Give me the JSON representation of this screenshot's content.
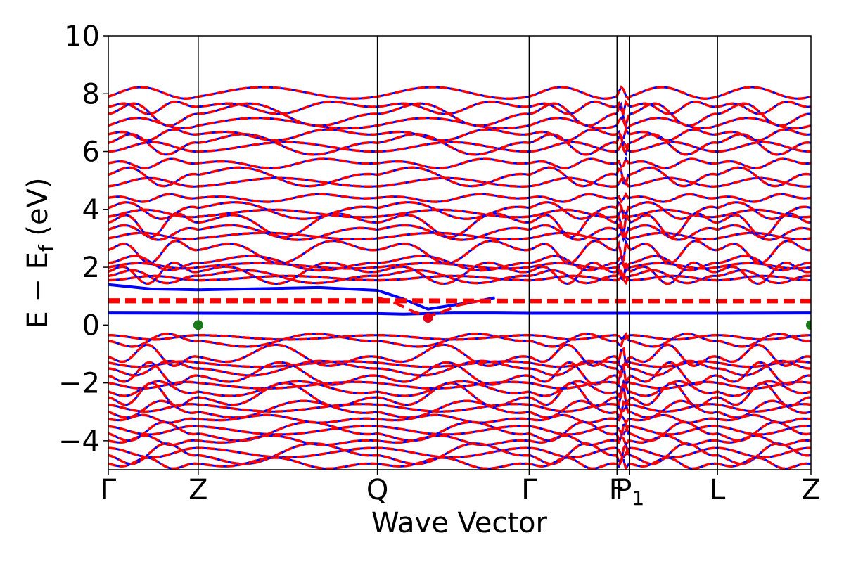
{
  "chart_data": {
    "type": "line",
    "title": "",
    "xlabel": "Wave Vector",
    "ylabel_main": "E − E",
    "ylabel_sub": "f",
    "ylabel_unit": " (eV)",
    "ylim": [
      -5,
      10
    ],
    "xlim": [
      0,
      1
    ],
    "yticks": [
      {
        "value": 10,
        "label": "10"
      },
      {
        "value": 8,
        "label": "8"
      },
      {
        "value": 6,
        "label": "6"
      },
      {
        "value": 4,
        "label": "4"
      },
      {
        "value": 2,
        "label": "2"
      },
      {
        "value": 0,
        "label": "0"
      },
      {
        "value": -2,
        "label": "−2"
      },
      {
        "value": -4,
        "label": "−4"
      }
    ],
    "kpoints": [
      {
        "x": 0.0,
        "label": "Γ"
      },
      {
        "x": 0.128,
        "label": "Z"
      },
      {
        "x": 0.383,
        "label": "Q"
      },
      {
        "x": 0.599,
        "label": "Γ"
      },
      {
        "x": 0.724,
        "label": "F"
      },
      {
        "x": 0.742,
        "label": "P",
        "sub": "1"
      },
      {
        "x": 0.867,
        "label": "L"
      },
      {
        "x": 1.0,
        "label": "Z"
      }
    ],
    "series": [
      {
        "color": "#0000ff",
        "style": "solid"
      },
      {
        "color": "#ff0000",
        "style": "dashed"
      }
    ],
    "defect_bands": {
      "blue": {
        "x": [
          0,
          0.128,
          0.3,
          0.383,
          0.42,
          0.455,
          0.49,
          0.55,
          0.599,
          0.724,
          0.742,
          0.867,
          1.0
        ],
        "y": [
          0.42,
          0.41,
          0.4,
          0.4,
          0.38,
          0.4,
          0.42,
          0.42,
          0.41,
          0.41,
          0.41,
          0.41,
          0.42
        ]
      },
      "blue_upper": {
        "x": [
          0,
          0.06,
          0.128,
          0.2,
          0.3,
          0.383,
          0.42,
          0.455,
          0.48,
          0.52,
          0.55
        ],
        "y": [
          1.4,
          1.25,
          1.22,
          1.25,
          1.3,
          1.2,
          0.9,
          0.55,
          0.65,
          0.8,
          0.95
        ]
      },
      "red": {
        "x": [
          0,
          0.128,
          0.3,
          0.383,
          0.599,
          0.724,
          0.742,
          0.867,
          1.0
        ],
        "y": [
          0.8,
          0.8,
          0.8,
          0.8,
          0.8,
          0.8,
          0.8,
          0.8,
          0.8
        ]
      },
      "red_upper": {
        "x": [
          0,
          0.128,
          0.3,
          0.383,
          0.599,
          0.724,
          0.867,
          1.0
        ],
        "y": [
          0.88,
          0.88,
          0.88,
          0.88,
          0.86,
          0.86,
          0.86,
          0.86
        ]
      },
      "red_dip": {
        "x": [
          0.383,
          0.41,
          0.435,
          0.455,
          0.475,
          0.5,
          0.53
        ],
        "y": [
          0.95,
          0.75,
          0.45,
          0.3,
          0.45,
          0.7,
          0.85
        ]
      }
    },
    "highlight_points": [
      {
        "x": 0.128,
        "y": 0.0,
        "color": "#1a7a1a"
      },
      {
        "x": 1.0,
        "y": 0.0,
        "color": "#1a7a1a"
      },
      {
        "x": 0.455,
        "y": 0.25,
        "color": "#e8001a"
      }
    ],
    "conduction_levels": [
      1.55,
      1.7,
      1.85,
      2.0,
      2.15,
      2.6,
      3.0,
      3.3,
      3.55,
      3.75,
      4.05,
      4.4,
      4.8,
      5.2,
      5.6,
      6.0,
      6.3,
      6.6,
      6.9,
      7.3,
      7.55,
      7.9
    ],
    "valence_levels": [
      -0.35,
      -0.55,
      -1.1,
      -1.3,
      -1.5,
      -1.75,
      -2.0,
      -2.3,
      -2.5,
      -2.75,
      -3.0,
      -3.25,
      -3.5,
      -3.75,
      -4.0,
      -4.25,
      -4.5,
      -4.8
    ]
  }
}
